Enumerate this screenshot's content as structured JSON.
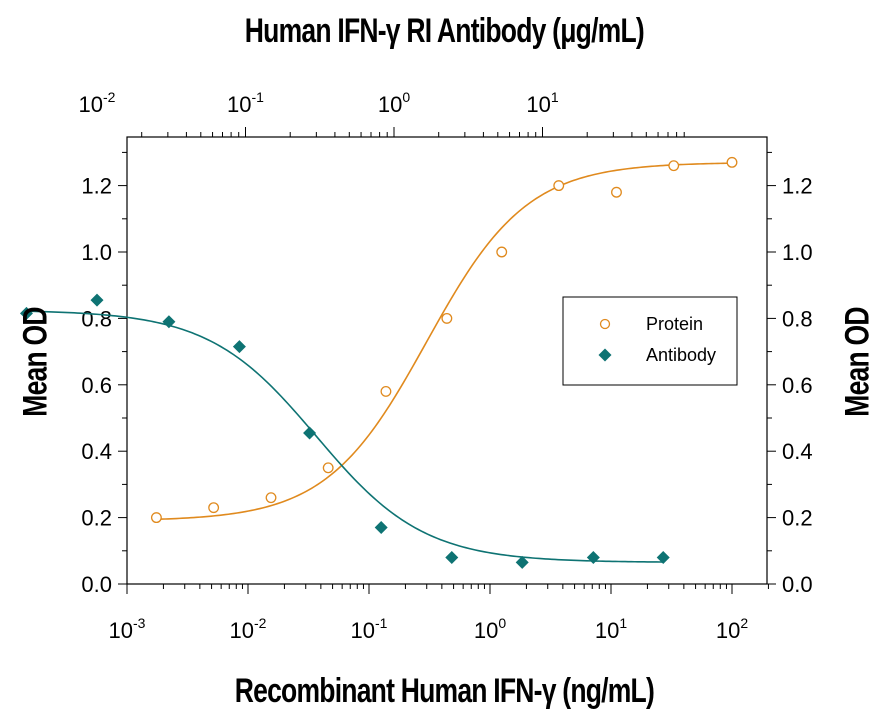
{
  "chart_data": {
    "type": "scatter",
    "title": "Human IFN-γ RI Antibody (μg/mL)",
    "xlabel": "Recombinant Human IFN-γ (ng/mL)",
    "ylabel": "Mean OD",
    "ylabel_right": "Mean OD",
    "x_scale": "log",
    "xlim": [
      0.001,
      200
    ],
    "ylim": [
      0.0,
      1.32
    ],
    "bottom_ticks": [
      {
        "value": 0.001,
        "base": "10",
        "exp": "-3"
      },
      {
        "value": 0.01,
        "base": "10",
        "exp": "-2"
      },
      {
        "value": 0.1,
        "base": "10",
        "exp": "-1"
      },
      {
        "value": 1,
        "base": "10",
        "exp": "0"
      },
      {
        "value": 10,
        "base": "10",
        "exp": "1"
      },
      {
        "value": 100,
        "base": "10",
        "exp": "2"
      }
    ],
    "top_ticks": [
      {
        "value": 0.01,
        "base": "10",
        "exp": "-2"
      },
      {
        "value": 0.1,
        "base": "10",
        "exp": "-1"
      },
      {
        "value": 1,
        "base": "10",
        "exp": "0"
      },
      {
        "value": 10,
        "base": "10",
        "exp": "1"
      }
    ],
    "y_ticks": [
      "0.0",
      "0.2",
      "0.4",
      "0.6",
      "0.8",
      "1.0",
      "1.2"
    ],
    "legend_position": "right",
    "grid": false,
    "series": [
      {
        "name": "Protein",
        "axis": "bottom",
        "marker": "open-circle",
        "color": "#E08A1E",
        "x": [
          0.00175,
          0.0052,
          0.0155,
          0.046,
          0.138,
          0.44,
          1.25,
          3.7,
          11.1,
          33,
          100
        ],
        "y": [
          0.2,
          0.23,
          0.26,
          0.35,
          0.58,
          0.8,
          1.0,
          1.2,
          1.18,
          1.26,
          1.27
        ],
        "fit": {
          "bottom": 0.19,
          "top": 1.27,
          "ec50": 0.3,
          "hill": 1.05
        }
      },
      {
        "name": "Antibody",
        "axis": "top",
        "marker": "filled-diamond",
        "color": "#0E7373",
        "x": [
          0.00335,
          0.01,
          0.0305,
          0.091,
          0.27,
          0.82,
          2.45,
          7.3,
          22,
          65
        ],
        "y": [
          0.815,
          0.855,
          0.79,
          0.715,
          0.455,
          0.17,
          0.08,
          0.065,
          0.08,
          0.08
        ],
        "fit": {
          "bottom": 0.065,
          "top": 0.825,
          "ec50": 0.3,
          "hill": 1.2
        }
      }
    ]
  }
}
